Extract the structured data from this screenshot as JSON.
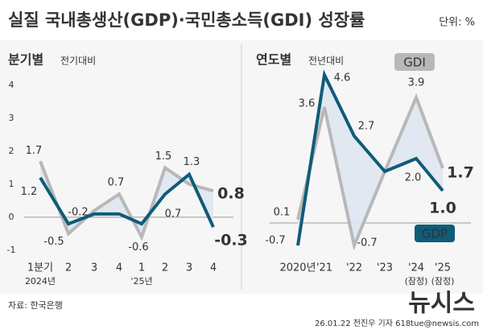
{
  "header": {
    "title": "실질 국내총생산(GDP)·국민총소득(GDI) 성장률",
    "unit": "단위: %"
  },
  "chart_data": [
    {
      "type": "line",
      "title": "분기별",
      "subtitle": "전기대비",
      "categories": [
        "1분기",
        "2",
        "3",
        "4",
        "1",
        "2",
        "3",
        "4"
      ],
      "sublabels": [
        "2024년",
        null,
        null,
        null,
        "'25년",
        null,
        null,
        null
      ],
      "series": [
        {
          "color": "#b8b8b8",
          "values": [
            1.7,
            -0.5,
            0.2,
            0.7,
            -0.6,
            1.5,
            1.0,
            0.8
          ],
          "value_labels": [
            "1.7",
            "-0.5",
            null,
            "0.7",
            "-0.6",
            "1.5",
            null,
            "0.8"
          ]
        },
        {
          "color": "#0f5c78",
          "values": [
            1.2,
            -0.2,
            0.1,
            0.1,
            -0.2,
            0.7,
            1.3,
            -0.3
          ],
          "value_labels": [
            "1.2",
            "-0.2",
            null,
            null,
            null,
            "0.7",
            "1.3",
            "-0.3"
          ]
        }
      ],
      "ylim": [
        -1.1,
        4.3
      ],
      "yticks": [
        -1,
        0,
        1,
        2,
        3,
        4
      ],
      "shade": "#dfe7f2"
    },
    {
      "type": "line",
      "title": "연도별",
      "subtitle": "전년대비",
      "categories": [
        "2020년",
        "'21",
        "'22",
        "'23",
        "'24",
        "'25"
      ],
      "sublabels": [
        null,
        null,
        null,
        null,
        "(잠정)",
        "(잠정)"
      ],
      "series": [
        {
          "name": "GDI",
          "color": "#b8b8b8",
          "values": [
            0.1,
            3.6,
            -0.7,
            1.6,
            3.9,
            1.7
          ],
          "value_labels": [
            "0.1",
            "3.6",
            "-0.7",
            null,
            "3.9",
            "1.7"
          ]
        },
        {
          "name": "GDP",
          "color": "#0f5c78",
          "values": [
            -0.7,
            4.6,
            2.7,
            1.6,
            2.0,
            1.0
          ],
          "value_labels": [
            "-0.7",
            "4.6",
            "2.7",
            null,
            "2.0",
            "1.0"
          ]
        }
      ],
      "ylim": [
        -1,
        4.8
      ],
      "shade": "#dfe7f2",
      "legend": true
    }
  ],
  "footer": {
    "source": "자료: 한국은행",
    "credit": "26.01.22 전진우 기자 618tue@newsis.com",
    "watermark": "뉴시스"
  }
}
